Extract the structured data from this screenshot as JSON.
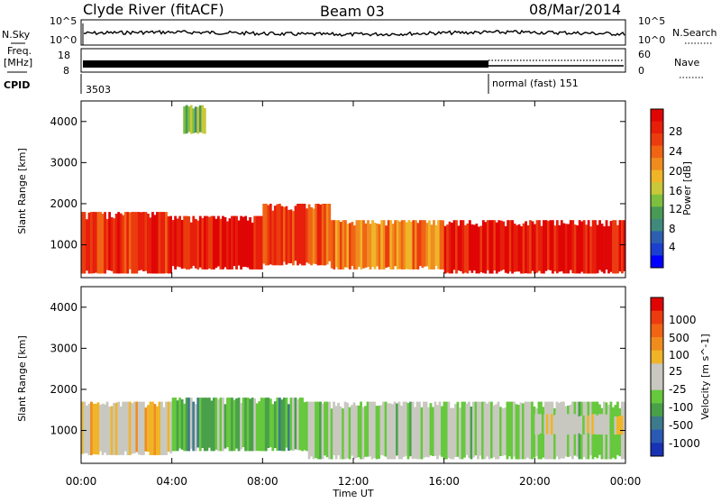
{
  "header": {
    "station": "Clyde River (fitACF)",
    "beam": "Beam 03",
    "date": "08/Mar/2014"
  },
  "side_labels": {
    "nsky": "N.Sky",
    "nsearch": "N.Search",
    "freq_line1": "Freq.",
    "freq_line2": "[MHz]",
    "nave": "Nave",
    "cpid": "CPID"
  },
  "small_axes": {
    "noise_left_top": "10^5",
    "noise_left_bottom": "10^0",
    "noise_right_top": "10^5",
    "noise_right_bottom": "10^0",
    "freq_left_top": "18",
    "freq_left_bottom": "8",
    "nave_right_top": "60",
    "nave_right_bottom": "0"
  },
  "cpid_segments": [
    {
      "label": "3503",
      "start_hour": 0
    },
    {
      "label": "normal (fast) 151",
      "start_hour": 18
    }
  ],
  "x_axis": {
    "title": "Time UT",
    "ticks": [
      "00:00",
      "04:00",
      "08:00",
      "12:00",
      "16:00",
      "20:00",
      "00:00"
    ]
  },
  "y_axis": {
    "title": "Slant Range [km]",
    "ticks": [
      "1000",
      "2000",
      "3000",
      "4000"
    ]
  },
  "power_colorbar": {
    "title": "Power [dB]",
    "ticks": [
      "4",
      "8",
      "12",
      "16",
      "20",
      "24",
      "28"
    ],
    "colors": [
      "#0000ff",
      "#1c3fd0",
      "#2d5fb0",
      "#3f8a7d",
      "#4a9a55",
      "#7fbf3f",
      "#c8c83a",
      "#f0b428",
      "#f08c1e",
      "#f06414",
      "#eb3c0f",
      "#e61e0a",
      "#e00505"
    ]
  },
  "velocity_colorbar": {
    "title": "Velocity [m s^-1]",
    "ticks": [
      "1000",
      "500",
      "100",
      "25",
      "-25",
      "-100",
      "-500",
      "-1000"
    ],
    "colors": [
      "#1832b4",
      "#2a5ab4",
      "#3c7a8c",
      "#4aa04a",
      "#66c83c",
      "#c8c8c0",
      "#c8c8c0",
      "#f0b428",
      "#f08c1e",
      "#f06414",
      "#eb3c0f",
      "#e00505"
    ]
  },
  "chart_data": {
    "type": "heatmap",
    "title": "Clyde River (fitACF) Beam 03 08/Mar/2014",
    "xlabel": "Time UT",
    "ylabel": "Slant Range [km]",
    "xlim": [
      0,
      24
    ],
    "ylim": [
      200,
      4500
    ],
    "panels": [
      {
        "name": "Power [dB]",
        "zlim": [
          0,
          30
        ],
        "bands": [
          {
            "t0": 0,
            "t1": 4,
            "r0": 300,
            "r1": 1800,
            "value": 26
          },
          {
            "t0": 4,
            "t1": 8,
            "r0": 400,
            "r1": 1700,
            "value": 28
          },
          {
            "t0": 8,
            "t1": 11,
            "r0": 500,
            "r1": 2000,
            "value": 24
          },
          {
            "t0": 11,
            "t1": 16,
            "r0": 400,
            "r1": 1600,
            "value": 20
          },
          {
            "t0": 16,
            "t1": 24,
            "r0": 300,
            "r1": 1600,
            "value": 28
          },
          {
            "t0": 4.5,
            "t1": 5.5,
            "r0": 3700,
            "r1": 4400,
            "value": 12
          }
        ]
      },
      {
        "name": "Velocity [m s^-1]",
        "zlim": [
          -1000,
          1000
        ],
        "bands": [
          {
            "t0": 0,
            "t1": 4,
            "r0": 400,
            "r1": 1700,
            "value": 100
          },
          {
            "t0": 4,
            "t1": 10,
            "r0": 500,
            "r1": 1800,
            "value": -300
          },
          {
            "t0": 10,
            "t1": 24,
            "r0": 300,
            "r1": 1700,
            "value": -100
          },
          {
            "t0": 20,
            "t1": 24,
            "r0": 900,
            "r1": 1400,
            "value": 0
          }
        ]
      }
    ]
  }
}
